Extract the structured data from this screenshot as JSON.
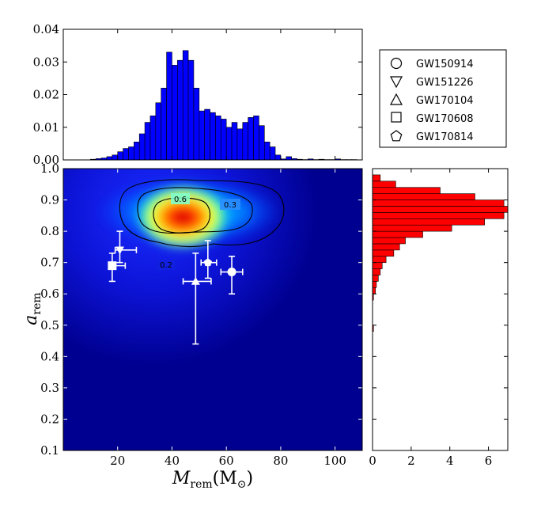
{
  "chart_data": [
    {
      "panel": "top-histogram",
      "type": "bar",
      "color": "#0000ff",
      "xlim": [
        0,
        110
      ],
      "ylim": [
        0,
        0.04
      ],
      "yticks": [
        "0.00",
        "0.01",
        "0.02",
        "0.03",
        "0.04"
      ],
      "bin_width": 2,
      "x": [
        11,
        13,
        15,
        17,
        19,
        21,
        23,
        25,
        27,
        29,
        31,
        33,
        35,
        37,
        39,
        41,
        43,
        45,
        47,
        49,
        51,
        53,
        55,
        57,
        59,
        61,
        63,
        65,
        67,
        69,
        71,
        73,
        75,
        77,
        79,
        81,
        83,
        85,
        87,
        89,
        91,
        93,
        95,
        97,
        99,
        101,
        103,
        105,
        107
      ],
      "values": [
        0.0002,
        0.0004,
        0.0006,
        0.001,
        0.0015,
        0.0025,
        0.0035,
        0.004,
        0.0055,
        0.008,
        0.0115,
        0.0135,
        0.0175,
        0.022,
        0.033,
        0.029,
        0.0305,
        0.0335,
        0.0305,
        0.022,
        0.015,
        0.0155,
        0.0145,
        0.0135,
        0.0125,
        0.01,
        0.0115,
        0.0095,
        0.0115,
        0.013,
        0.0135,
        0.0105,
        0.0055,
        0.004,
        0.0015,
        0.0003,
        0.001,
        0.0004,
        0.0002,
        0.0001,
        0.0003,
        0.0001,
        0.0002,
        0.0001,
        0.0001,
        0.0003,
        0.0001,
        0.0001,
        0.0001
      ]
    },
    {
      "panel": "main-density",
      "type": "heatmap",
      "xlabel_base": "M",
      "xlabel_sub": "rem",
      "xlabel_unit": "(M",
      "xlabel_unit_sub": "⊙",
      "xlabel_close": ")",
      "ylabel_base": "a",
      "ylabel_sub": "rem",
      "xlim": [
        0,
        110
      ],
      "ylim": [
        0.1,
        1.0
      ],
      "xticks": [
        "20",
        "40",
        "60",
        "80",
        "100"
      ],
      "yticks": [
        "0.1",
        "0.2",
        "0.3",
        "0.4",
        "0.5",
        "0.6",
        "0.7",
        "0.8",
        "0.9",
        "1.0"
      ],
      "contour_labels": [
        "0.6",
        "0.3",
        "0.2"
      ],
      "peak": {
        "x": 44,
        "y": 0.845
      },
      "events": [
        {
          "name": "GW150914",
          "marker": "circle",
          "x": 62,
          "y": 0.67,
          "xerr": [
            4,
            4
          ],
          "yerr": [
            0.07,
            0.05
          ]
        },
        {
          "name": "GW151226",
          "marker": "triangle-down",
          "x": 20.8,
          "y": 0.74,
          "xerr": [
            1.7,
            6.1
          ],
          "yerr": [
            0.04,
            0.06
          ]
        },
        {
          "name": "GW170104",
          "marker": "triangle-up",
          "x": 48.7,
          "y": 0.64,
          "xerr": [
            4.6,
            5.7
          ],
          "yerr": [
            0.2,
            0.09
          ]
        },
        {
          "name": "GW170608",
          "marker": "square",
          "x": 18,
          "y": 0.69,
          "xerr": [
            0.9,
            4.8
          ],
          "yerr": [
            0.05,
            0.04
          ]
        },
        {
          "name": "GW170814",
          "marker": "pentagon",
          "x": 53.2,
          "y": 0.7,
          "xerr": [
            2.5,
            3.2
          ],
          "yerr": [
            0.05,
            0.07
          ]
        }
      ]
    },
    {
      "panel": "right-histogram",
      "type": "bar",
      "orientation": "horizontal",
      "color": "#ff0000",
      "xlim": [
        0,
        7
      ],
      "xticks": [
        "0",
        "2",
        "4",
        "6"
      ],
      "ylim": [
        0.1,
        1.0
      ],
      "bin_height": 0.02,
      "y": [
        0.49,
        0.59,
        0.61,
        0.63,
        0.65,
        0.67,
        0.69,
        0.71,
        0.73,
        0.75,
        0.77,
        0.79,
        0.81,
        0.83,
        0.85,
        0.87,
        0.89,
        0.91,
        0.93,
        0.95,
        0.97
      ],
      "values": [
        0.05,
        0.05,
        0.15,
        0.2,
        0.3,
        0.4,
        0.5,
        0.7,
        1.1,
        1.4,
        1.7,
        2.6,
        4.1,
        5.8,
        6.8,
        7,
        6.8,
        5.3,
        3.5,
        1.2,
        0.4
      ]
    }
  ],
  "legend": {
    "placement": "top-right",
    "items": [
      {
        "label": "GW150914",
        "marker": "circle-icon"
      },
      {
        "label": "GW151226",
        "marker": "triangle-down-icon"
      },
      {
        "label": "GW170104",
        "marker": "triangle-up-icon"
      },
      {
        "label": "GW170608",
        "marker": "square-icon"
      },
      {
        "label": "GW170814",
        "marker": "pentagon-icon"
      }
    ]
  }
}
